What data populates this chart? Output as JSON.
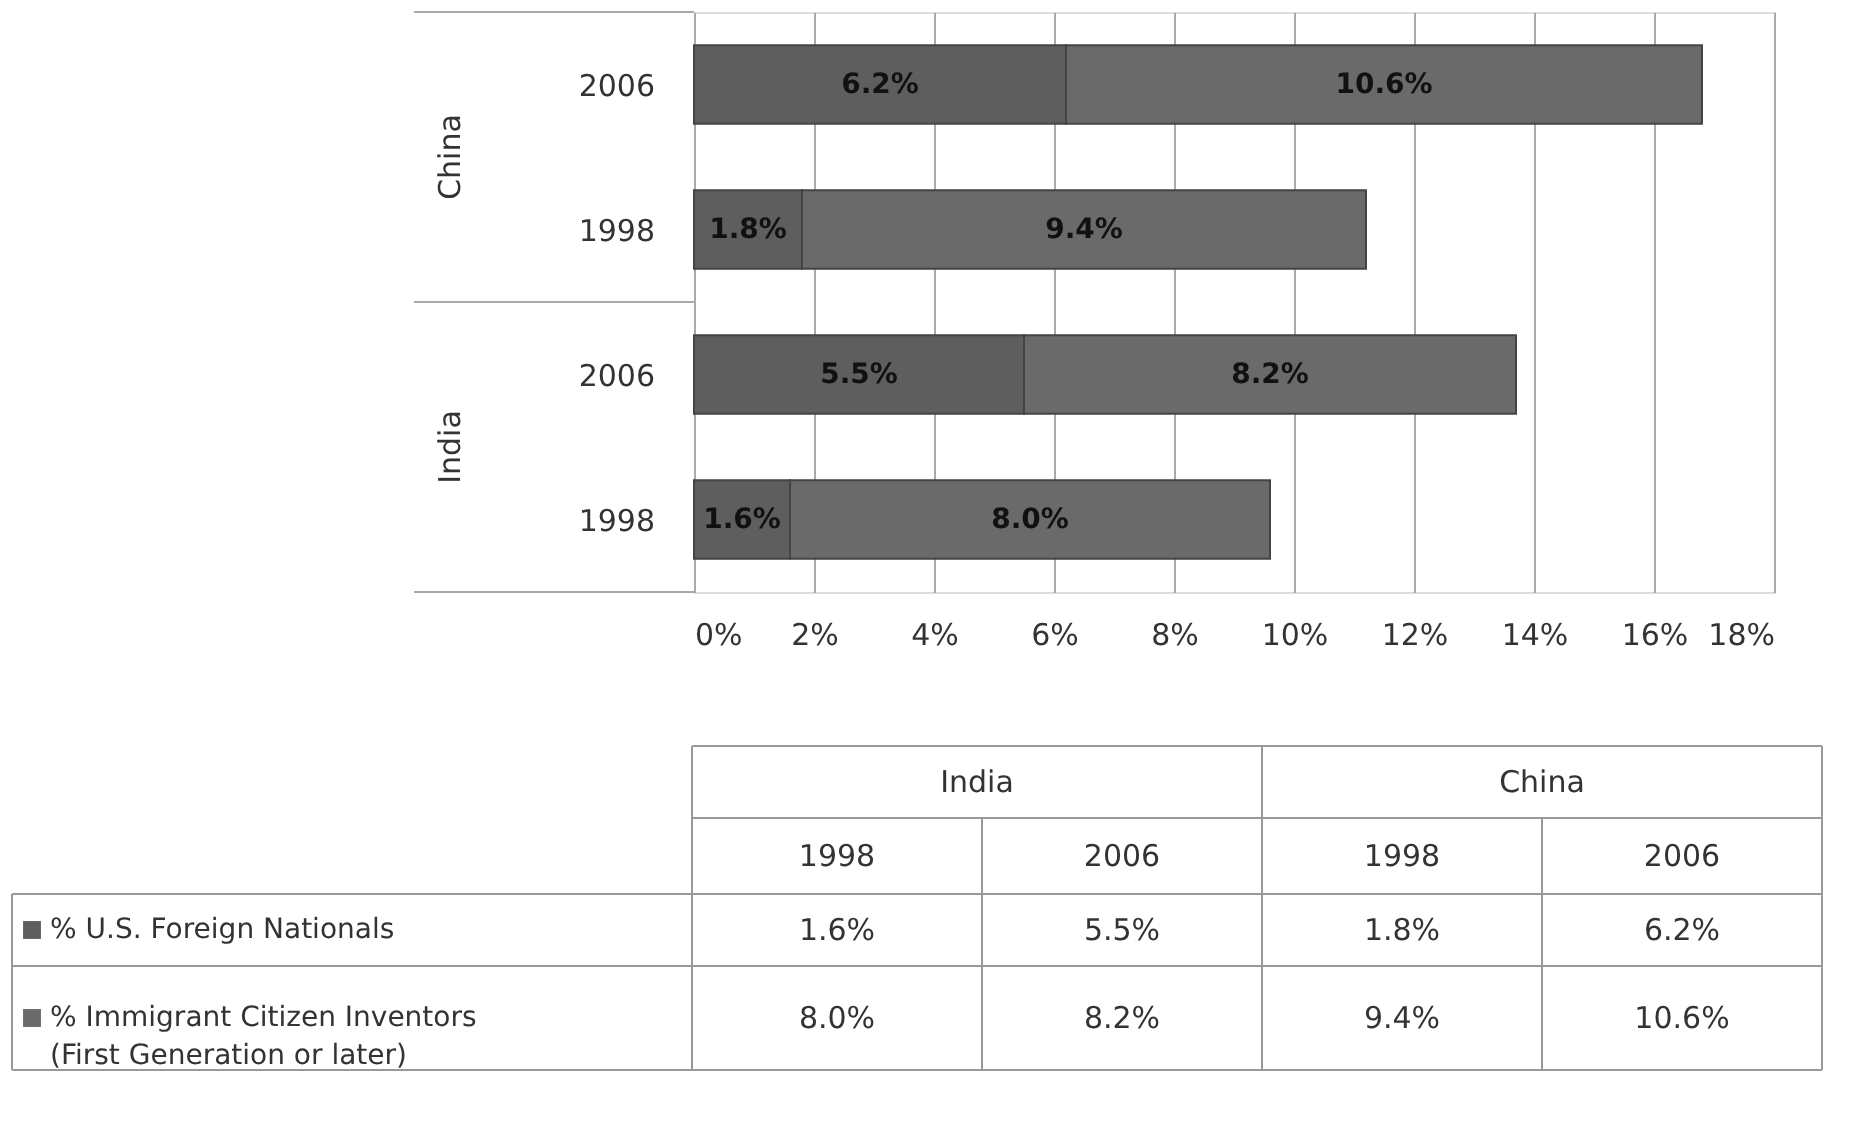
{
  "chart_data": {
    "type": "bar",
    "orientation": "horizontal",
    "stacked": true,
    "categories": [
      "2006",
      "1998",
      "2006",
      "1998"
    ],
    "annotations": [
      "China",
      "India"
    ],
    "series": [
      {
        "name": "% U.S. Foreign Nationals",
        "color": "#5e5e5e",
        "values": [
          6.2,
          1.8,
          5.5,
          1.6
        ],
        "value_labels": [
          "6.2%",
          "1.8%",
          "5.5%",
          "1.6%"
        ]
      },
      {
        "name": "% Immigrant Citizen Inventors (First Generation or later)",
        "color": "#6a6a6a",
        "values": [
          10.6,
          9.4,
          8.2,
          8.0
        ],
        "value_labels": [
          "10.6%",
          "9.4%",
          "8.2%",
          "8.0%"
        ]
      }
    ],
    "xlim": [
      0,
      18
    ],
    "xticks": [
      {
        "value": 0,
        "label": "0%"
      },
      {
        "value": 2,
        "label": "2%"
      },
      {
        "value": 4,
        "label": "4%"
      },
      {
        "value": 6,
        "label": "6%"
      },
      {
        "value": 8,
        "label": "8%"
      },
      {
        "value": 10,
        "label": "10%"
      },
      {
        "value": 12,
        "label": "12%"
      },
      {
        "value": 14,
        "label": "14%"
      },
      {
        "value": 16,
        "label": "16%"
      },
      {
        "value": 18,
        "label": "18%"
      }
    ],
    "grid": "x",
    "legend": "bottom"
  }
}
